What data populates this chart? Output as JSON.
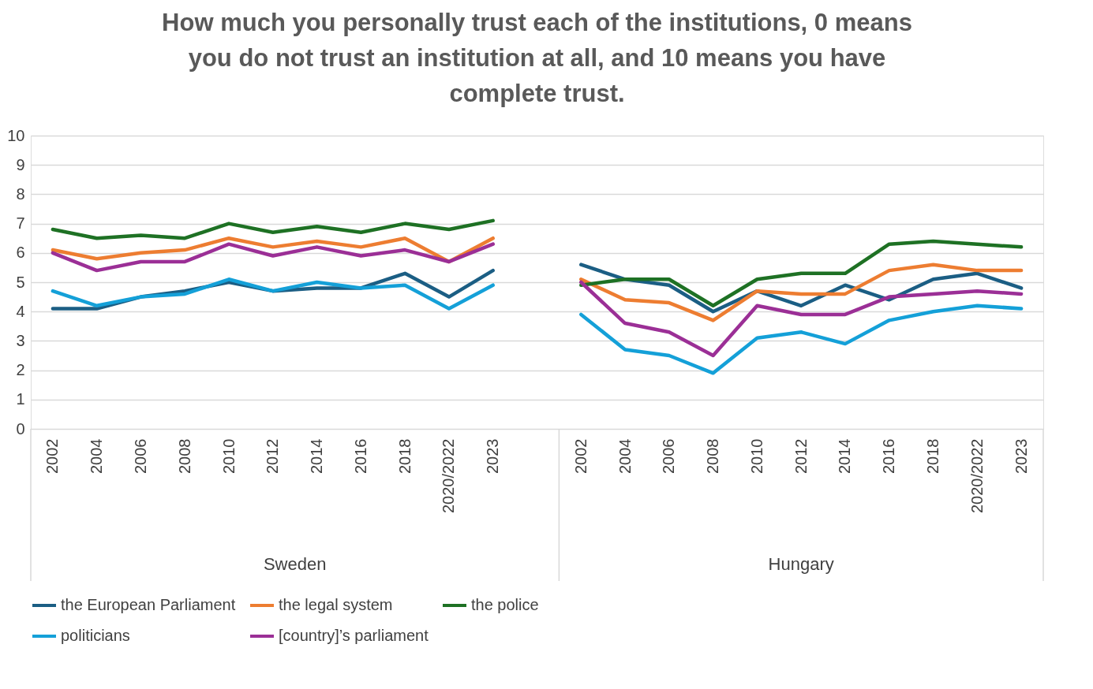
{
  "chart_data": {
    "type": "line",
    "title": "How much you personally trust each of the institutions, 0 means you do not trust an institution at all, and 10 means you have complete trust.",
    "categories": [
      "2002",
      "2004",
      "2006",
      "2008",
      "2010",
      "2012",
      "2014",
      "2016",
      "2018",
      "2020/2022",
      "2023",
      null,
      "2002",
      "2004",
      "2006",
      "2008",
      "2010",
      "2012",
      "2014",
      "2016",
      "2018",
      "2020/2022",
      "2023"
    ],
    "series": [
      {
        "name": "the European Parliament",
        "color": "#1b5e84",
        "values": [
          4.1,
          4.1,
          4.5,
          4.7,
          5.0,
          4.7,
          4.8,
          4.8,
          5.3,
          4.5,
          5.4,
          null,
          5.6,
          5.1,
          4.9,
          4.0,
          4.7,
          4.2,
          4.9,
          4.4,
          5.1,
          5.3,
          4.8
        ]
      },
      {
        "name": "the legal system",
        "color": "#ed7d31",
        "values": [
          6.1,
          5.8,
          6.0,
          6.1,
          6.5,
          6.2,
          6.4,
          6.2,
          6.5,
          5.7,
          6.5,
          null,
          5.1,
          4.4,
          4.3,
          3.7,
          4.7,
          4.6,
          4.6,
          5.4,
          5.6,
          5.4,
          5.4
        ]
      },
      {
        "name": "the police",
        "color": "#1e7124",
        "values": [
          6.8,
          6.5,
          6.6,
          6.5,
          7.0,
          6.7,
          6.9,
          6.7,
          7.0,
          6.8,
          7.1,
          null,
          4.9,
          5.1,
          5.1,
          4.2,
          5.1,
          5.3,
          5.3,
          6.3,
          6.4,
          6.3,
          6.2
        ]
      },
      {
        "name": "politicians",
        "color": "#14a0d8",
        "values": [
          4.7,
          4.2,
          4.5,
          4.6,
          5.1,
          4.7,
          5.0,
          4.8,
          4.9,
          4.1,
          4.9,
          null,
          3.9,
          2.7,
          2.5,
          1.9,
          3.1,
          3.3,
          2.9,
          3.7,
          4.0,
          4.2,
          4.1
        ]
      },
      {
        "name": "[country]’s parliament",
        "color": "#9b2f96",
        "values": [
          6.0,
          5.4,
          5.7,
          5.7,
          6.3,
          5.9,
          6.2,
          5.9,
          6.1,
          5.7,
          6.3,
          null,
          5.0,
          3.6,
          3.3,
          2.5,
          4.2,
          3.9,
          3.9,
          4.5,
          4.6,
          4.7,
          4.6
        ]
      }
    ],
    "annotations": [
      "Sweden",
      "Hungary"
    ],
    "ylim": [
      0,
      10
    ],
    "yticks": [
      0,
      1,
      2,
      3,
      4,
      5,
      6,
      7,
      8,
      9,
      10
    ],
    "grid": "y",
    "legend": "bottom",
    "marker": "none",
    "line_style": "solid"
  }
}
